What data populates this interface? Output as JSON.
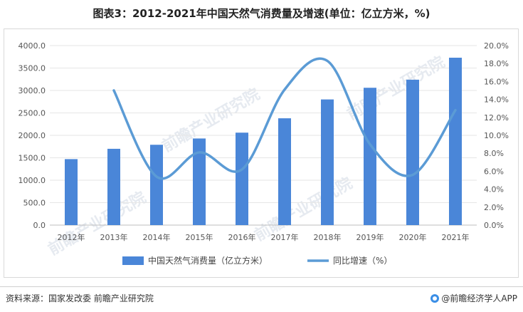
{
  "chart_data": {
    "type": "bar+line",
    "title": "图表3：2012-2021年中国天然气消费量及增速(单位：亿立方米，%)",
    "categories": [
      "2012年",
      "2013年",
      "2014年",
      "2015年",
      "2016年",
      "2017年",
      "2018年",
      "2019年",
      "2020年",
      "2021年"
    ],
    "series": [
      {
        "name": "中国天然气消费量（亿立方米）",
        "type": "bar",
        "axis": "left",
        "color": "#4a86d8",
        "values": [
          1470,
          1700,
          1790,
          1930,
          2060,
          2380,
          2800,
          3060,
          3240,
          3730
        ]
      },
      {
        "name": "同比增速（%）",
        "type": "line",
        "axis": "right",
        "color": "#5b9bd5",
        "values": [
          null,
          15.0,
          5.4,
          8.1,
          6.2,
          15.1,
          18.3,
          9.0,
          5.6,
          12.8
        ]
      }
    ],
    "ylim_left": [
      0,
      4000
    ],
    "yticks_left": [
      "0.0",
      "500.0",
      "1000.0",
      "1500.0",
      "2000.0",
      "2500.0",
      "3000.0",
      "3500.0",
      "4000.0"
    ],
    "ylim_right": [
      0,
      20
    ],
    "yticks_right": [
      "0.0%",
      "2.0%",
      "4.0%",
      "6.0%",
      "8.0%",
      "10.0%",
      "12.0%",
      "14.0%",
      "16.0%",
      "18.0%",
      "20.0%"
    ],
    "legend_position": "bottom",
    "grid": "horizontal"
  },
  "footer": {
    "source": "资料来源：国家发改委 前瞻产业研究院",
    "brand": "@前瞻经济学人APP"
  },
  "watermark": "前瞻产业研究院"
}
